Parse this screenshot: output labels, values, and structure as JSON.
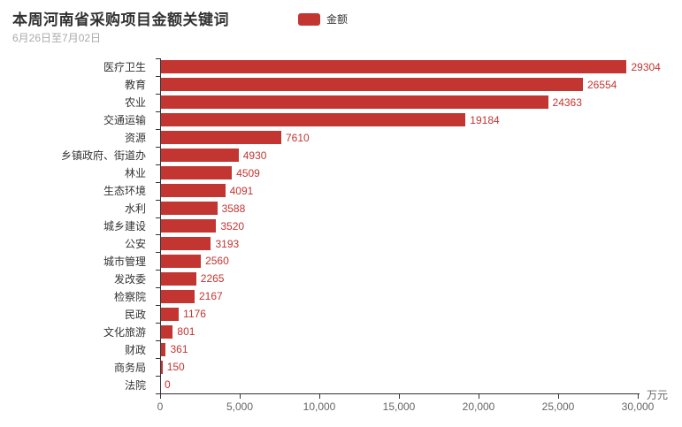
{
  "header": {
    "title": "本周河南省采购项目金额关键词",
    "subtitle": "6月26日至7月02日"
  },
  "legend": {
    "label": "金额",
    "color": "#c23531"
  },
  "chart_data": {
    "type": "bar",
    "orientation": "horizontal",
    "title": "本周河南省采购项目金额关键词",
    "subtitle": "6月26日至7月02日",
    "series_name": "金额",
    "categories": [
      "医疗卫生",
      "教育",
      "农业",
      "交通运输",
      "资源",
      "乡镇政府、街道办",
      "林业",
      "生态环境",
      "水利",
      "城乡建设",
      "公安",
      "城市管理",
      "发改委",
      "检察院",
      "民政",
      "文化旅游",
      "财政",
      "商务局",
      "法院"
    ],
    "values": [
      29304,
      26554,
      24363,
      19184,
      7610,
      4930,
      4509,
      4091,
      3588,
      3520,
      3193,
      2560,
      2265,
      2167,
      1176,
      801,
      361,
      150,
      0
    ],
    "value_labels": [
      "29304",
      "26554",
      "24363",
      "19184",
      "7610",
      "4930",
      "4509",
      "4091",
      "3588",
      "3520",
      "3193",
      "2560",
      "2265",
      "2167",
      "1176",
      "801",
      "361",
      "150",
      "0"
    ],
    "xlabel_unit": "万元",
    "xlim": [
      0,
      30000
    ],
    "x_ticks": [
      0,
      5000,
      10000,
      15000,
      20000,
      25000,
      30000
    ],
    "x_tick_labels": [
      "0",
      "5,000",
      "10,000",
      "15,000",
      "20,000",
      "25,000",
      "30,000"
    ],
    "bar_color": "#c23531",
    "value_label_color": "#c23531",
    "grid": false,
    "legend_position": "top-center",
    "background_color": "#ffffff"
  }
}
